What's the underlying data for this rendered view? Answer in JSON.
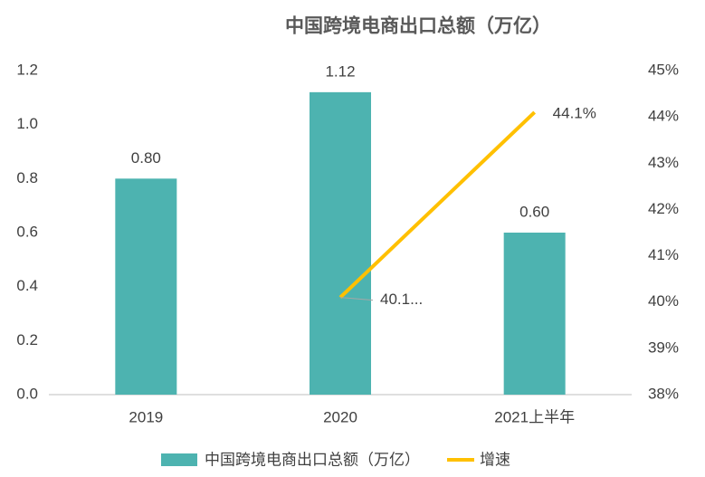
{
  "chart_data": {
    "type": "combo",
    "title": "中国跨境电商出口总额（万亿）",
    "categories": [
      "2019",
      "2020",
      "2021上半年"
    ],
    "series": [
      {
        "name": "中国跨境电商出口总额（万亿）",
        "type": "bar",
        "color": "#4db3b0",
        "values": [
          0.8,
          1.12,
          0.6
        ],
        "value_labels": [
          "0.80",
          "1.12",
          "0.60"
        ]
      },
      {
        "name": "增速",
        "type": "line",
        "axis": "y2",
        "color": "#ffc000",
        "values": [
          null,
          40.1,
          44.1
        ],
        "value_labels": [
          null,
          "40.1...",
          "44.1%"
        ]
      }
    ],
    "ylim": [
      0,
      1.2
    ],
    "yticks": [
      {
        "value": 0,
        "label": "0.0"
      },
      0.2,
      0.4,
      0.6,
      0.8,
      {
        "value": 1,
        "label": "1.0"
      },
      1.2
    ],
    "y2lim": [
      38,
      45
    ],
    "y2ticks": [
      {
        "value": 38,
        "label": "38%"
      },
      {
        "value": 39,
        "label": "39%"
      },
      {
        "value": 40,
        "label": "40%"
      },
      {
        "value": 41,
        "label": "41%"
      },
      {
        "value": 42,
        "label": "42%"
      },
      {
        "value": 43,
        "label": "43%"
      },
      {
        "value": 44,
        "label": "44%"
      },
      {
        "value": 45,
        "label": "45%"
      }
    ],
    "grid": false,
    "legend": "bottom"
  }
}
